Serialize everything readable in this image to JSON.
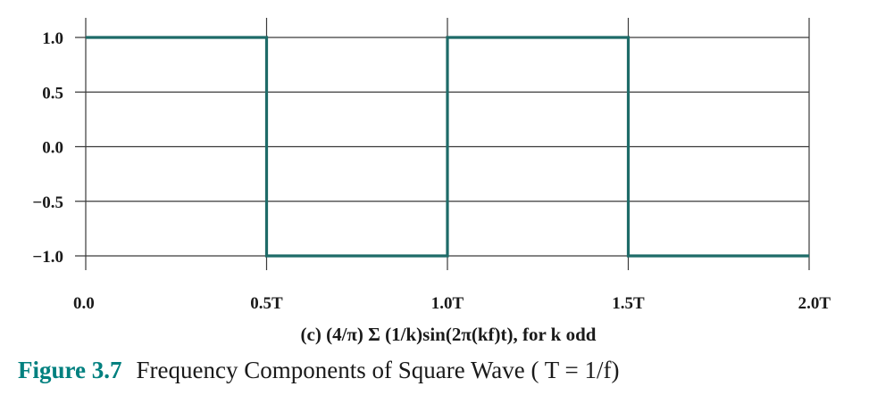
{
  "chart_data": {
    "type": "line",
    "line_style": "step",
    "series": [
      {
        "x": [
          0.0,
          0.5,
          0.5,
          1.0,
          1.0,
          1.5,
          1.5,
          2.0
        ],
        "y": [
          1.0,
          1.0,
          -1.0,
          -1.0,
          1.0,
          1.0,
          -1.0,
          -1.0
        ]
      }
    ],
    "xlim": [
      0.0,
      2.0
    ],
    "ylim": [
      -1.0,
      1.0
    ],
    "xticks": [
      0.0,
      0.5,
      1.0,
      1.5,
      2.0
    ],
    "xticklabels": [
      "0.0",
      "0.5T",
      "1.0T",
      "1.5T",
      "2.0T"
    ],
    "yticks": [
      1.0,
      0.5,
      0.0,
      -0.5,
      -1.0
    ],
    "yticklabels": [
      "1.0",
      "0.5",
      "0.0",
      "−0.5",
      "−1.0"
    ],
    "xlabel": "(c) (4/π) Σ (1/k)sin(2π(kf)t), for k odd",
    "grid": true,
    "colors": {
      "line": "#1e6b68",
      "grid": "#3a3a3a",
      "caption_accent": "#00807f"
    }
  },
  "caption": {
    "number": "Figure 3.7",
    "text": "Frequency Components of Square Wave ( T = 1/f)"
  }
}
